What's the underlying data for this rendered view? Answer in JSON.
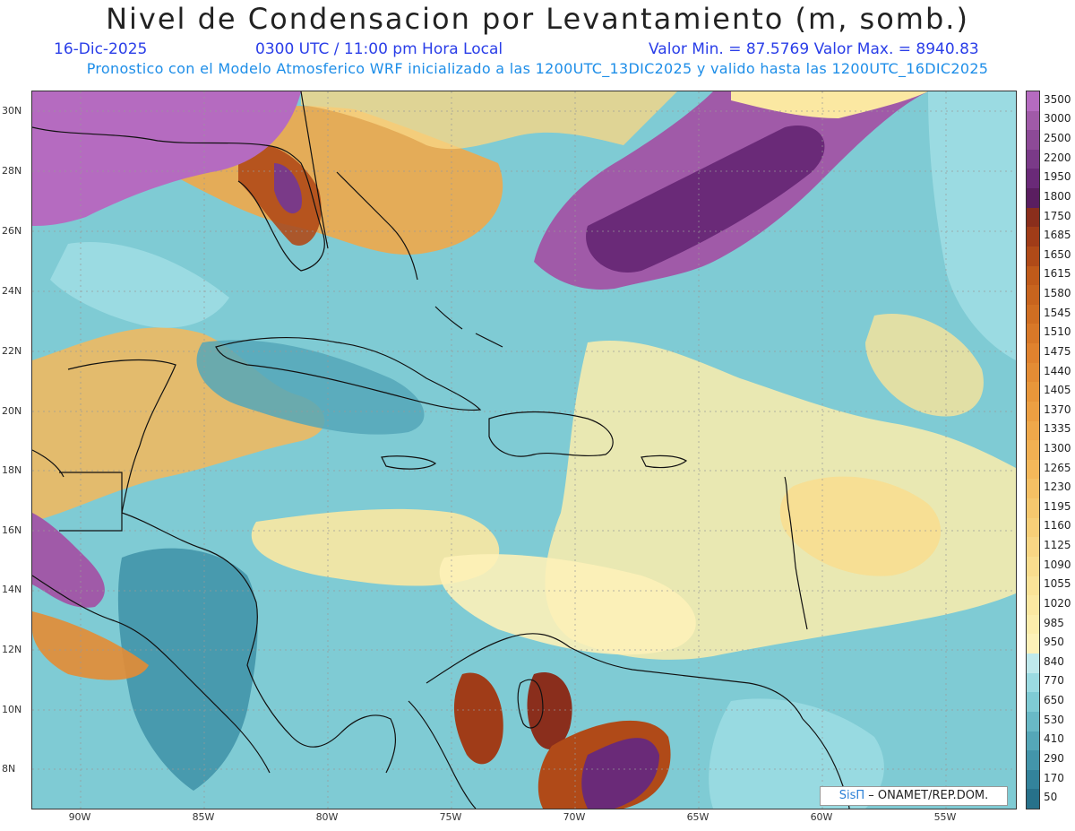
{
  "header": {
    "title": "Nivel de Condensacion por Levantamiento (m, somb.)",
    "date": "16-Dic-2025",
    "time": "0300 UTC / 11:00 pm Hora Local",
    "min_max": "Valor Min. = 87.5769  Valor Max. = 8940.83",
    "forecast_note": "Pronostico con el Modelo Atmosferico WRF inicializado a las 1200UTC_13DIC2025 y valido hasta las  1200UTC_16DIC2025"
  },
  "map": {
    "lat_labels": [
      "30N",
      "28N",
      "26N",
      "24N",
      "22N",
      "20N",
      "18N",
      "16N",
      "14N",
      "12N",
      "10N",
      "8N"
    ],
    "lon_labels": [
      "90W",
      "85W",
      "80W",
      "75W",
      "70W",
      "65W",
      "60W",
      "55W"
    ],
    "credit_sis": "SisΠ",
    "credit_org": "– ONAMET/REP.DOM."
  },
  "colorbar": {
    "levels": [
      "3500",
      "3000",
      "2500",
      "2200",
      "1950",
      "1800",
      "1750",
      "1685",
      "1650",
      "1615",
      "1580",
      "1545",
      "1510",
      "1475",
      "1440",
      "1405",
      "1370",
      "1335",
      "1300",
      "1265",
      "1230",
      "1195",
      "1160",
      "1125",
      "1090",
      "1055",
      "1020",
      "985",
      "950",
      "840",
      "770",
      "650",
      "530",
      "410",
      "290",
      "170",
      "50"
    ],
    "colors": [
      "#b56bc0",
      "#a05aa8",
      "#8d4a97",
      "#7a3a88",
      "#6a2a78",
      "#5a1e60",
      "#8a2e1c",
      "#a03c18",
      "#b04a18",
      "#c05a1a",
      "#c8641e",
      "#d06e22",
      "#d87828",
      "#e0822e",
      "#e48c34",
      "#e8963a",
      "#ec9f42",
      "#efa84a",
      "#f2b052",
      "#f4b85a",
      "#f5c064",
      "#f6c86e",
      "#f7cf78",
      "#f8d684",
      "#f9dd8e",
      "#fae398",
      "#fbe8a2",
      "#fcedac",
      "#fdf1b8",
      "#bfe9ec",
      "#9bdbe2",
      "#7fcbd4",
      "#69b9c6",
      "#55a7b8",
      "#4395aa",
      "#33839b",
      "#27718a"
    ]
  }
}
